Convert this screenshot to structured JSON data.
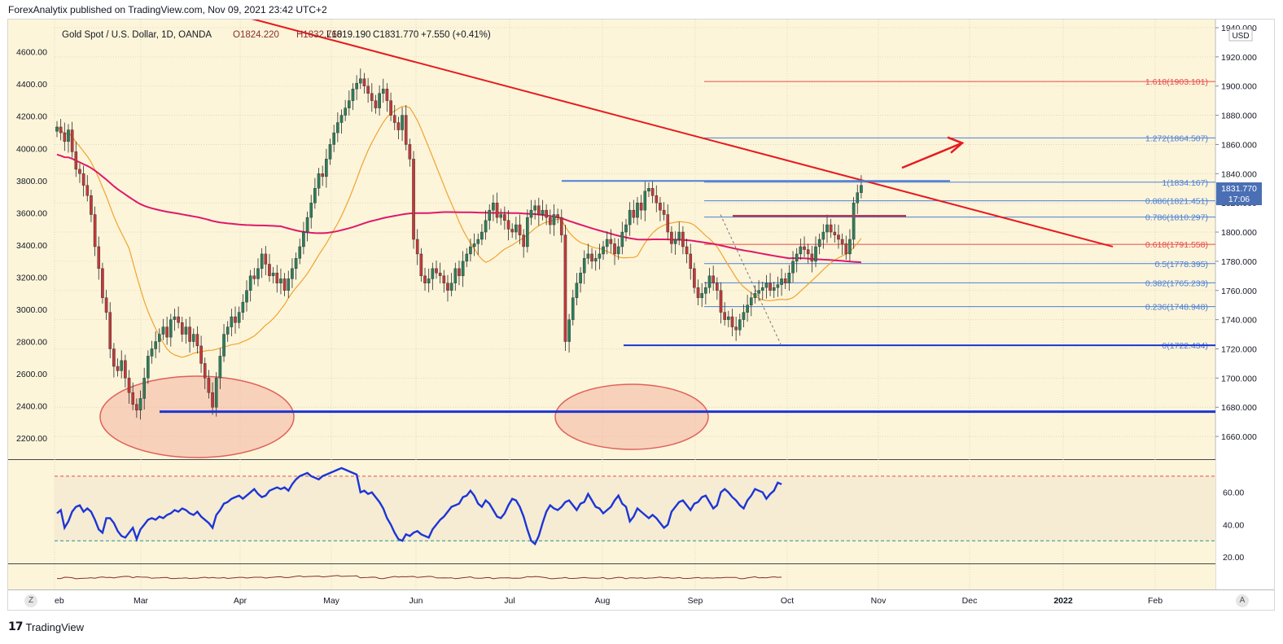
{
  "publisher_line": "ForexAnalytix published on TradingView.com, Nov 09, 2021 23:42 UTC+2",
  "brand": {
    "logo_text": "17",
    "name": "TradingView"
  },
  "zoom_button": "Z",
  "auto_button": "A",
  "currency_badge": "USD",
  "legend": {
    "symbol": "Gold Spot / U.S. Dollar, 1D, OANDA",
    "open": "O1824.220",
    "high": "H1832.760",
    "low": "L1819.190",
    "close": "C1831.770",
    "change": "+7.550 (+0.41%)"
  },
  "last_price": {
    "value": "1831.770",
    "countdown": "17:06"
  },
  "colors": {
    "background": "#fcf5da",
    "rsi_background": "#f5ecd3",
    "trendline": "#e8191f",
    "support_line": "#1d35d6",
    "ma_long": "#e0186b",
    "ma_short": "#f2a32e",
    "rsi_line": "#1d35d6",
    "fib_blue": "#4d7fd6",
    "fib_red": "#e84a4a",
    "candle_up": "#2e7d5b",
    "candle_down": "#c03a3a",
    "ellipse_fill": "#f3b3a0",
    "ellipse_stroke": "#e0605a"
  },
  "chart_data": {
    "type": "candlestick",
    "title": "Gold Spot / U.S. Dollar, 1D, OANDA",
    "right_axis": {
      "label": "USD",
      "ticks": [
        "1940.000",
        "1920.000",
        "1900.000",
        "1880.000",
        "1860.000",
        "1840.000",
        "1820.000",
        "1800.000",
        "1780.000",
        "1760.000",
        "1740.000",
        "1720.000",
        "1700.000",
        "1680.000",
        "1660.000"
      ],
      "range": [
        1650,
        1940
      ]
    },
    "left_axis": {
      "ticks": [
        "4600.00",
        "4400.00",
        "4200.00",
        "4000.00",
        "3800.00",
        "3600.00",
        "3400.00",
        "3200.00",
        "3000.00",
        "2800.00",
        "2600.00",
        "2400.00",
        "2200.00"
      ],
      "range": [
        2120,
        4750
      ]
    },
    "x_axis": {
      "ticks": [
        "eb",
        "Mar",
        "Apr",
        "May",
        "Jun",
        "Jul",
        "Aug",
        "Sep",
        "Oct",
        "Nov",
        "Dec",
        "2022",
        "Feb"
      ]
    },
    "fibonacci": [
      {
        "label": "1.618(1903.101)",
        "level": 1903.101
      },
      {
        "label": "1.272(1864.507)",
        "level": 1864.507
      },
      {
        "label": "1(1834.167)",
        "level": 1834.167
      },
      {
        "label": "0.886(1821.451)",
        "level": 1821.451
      },
      {
        "label": "0.786(1810.297)",
        "level": 1810.297
      },
      {
        "label": "0.618(1791.558)",
        "level": 1791.558
      },
      {
        "label": "0.5(1778.395)",
        "level": 1778.395
      },
      {
        "label": "0.382(1765.233)",
        "level": 1765.233
      },
      {
        "label": "0.236(1748.948)",
        "level": 1748.948
      },
      {
        "label": "0(1722.434)",
        "level": 1722.434
      }
    ],
    "support_levels": [
      1722.4,
      1677
    ],
    "resistance_zone": 1811,
    "trendline": {
      "from": [
        "Jan",
        "1946"
      ],
      "to": [
        "Dec",
        "1790"
      ]
    },
    "close_series": [
      1872,
      1868,
      1862,
      1870,
      1855,
      1843,
      1840,
      1832,
      1825,
      1812,
      1790,
      1775,
      1755,
      1745,
      1720,
      1708,
      1705,
      1712,
      1700,
      1690,
      1682,
      1678,
      1686,
      1700,
      1715,
      1720,
      1725,
      1730,
      1735,
      1728,
      1740,
      1742,
      1738,
      1730,
      1735,
      1725,
      1730,
      1722,
      1710,
      1700,
      1690,
      1680,
      1700,
      1715,
      1730,
      1735,
      1742,
      1738,
      1745,
      1752,
      1760,
      1770,
      1768,
      1775,
      1785,
      1778,
      1770,
      1772,
      1765,
      1768,
      1760,
      1768,
      1775,
      1782,
      1790,
      1800,
      1810,
      1820,
      1830,
      1840,
      1838,
      1850,
      1860,
      1868,
      1875,
      1880,
      1885,
      1890,
      1898,
      1902,
      1905,
      1900,
      1895,
      1890,
      1885,
      1895,
      1898,
      1890,
      1880,
      1875,
      1870,
      1880,
      1860,
      1850,
      1795,
      1785,
      1770,
      1765,
      1768,
      1775,
      1772,
      1770,
      1765,
      1760,
      1765,
      1775,
      1770,
      1780,
      1785,
      1790,
      1792,
      1795,
      1800,
      1808,
      1815,
      1820,
      1810,
      1812,
      1808,
      1802,
      1800,
      1805,
      1798,
      1790,
      1810,
      1815,
      1818,
      1812,
      1815,
      1810,
      1805,
      1812,
      1810,
      1798,
      1725,
      1740,
      1755,
      1765,
      1772,
      1782,
      1785,
      1780,
      1782,
      1785,
      1790,
      1795,
      1792,
      1785,
      1790,
      1800,
      1805,
      1815,
      1810,
      1820,
      1815,
      1828,
      1830,
      1825,
      1820,
      1815,
      1812,
      1800,
      1792,
      1795,
      1800,
      1790,
      1785,
      1775,
      1762,
      1755,
      1758,
      1762,
      1770,
      1765,
      1760,
      1745,
      1740,
      1742,
      1735,
      1733,
      1740,
      1745,
      1750,
      1755,
      1758,
      1760,
      1762,
      1765,
      1760,
      1762,
      1764,
      1768,
      1765,
      1772,
      1780,
      1785,
      1790,
      1788,
      1785,
      1780,
      1790,
      1795,
      1800,
      1805,
      1800,
      1798,
      1795,
      1792,
      1785,
      1795,
      1820,
      1827,
      1832
    ]
  },
  "rsi": {
    "ticks": [
      "60.00",
      "40.00",
      "20.00"
    ],
    "overbought": 70,
    "oversold": 30,
    "values": [
      47,
      49,
      38,
      42,
      48,
      51,
      52,
      48,
      50,
      48,
      43,
      37,
      35,
      44,
      44,
      41,
      36,
      33,
      32,
      35,
      38,
      31,
      37,
      40,
      43,
      44,
      43,
      45,
      44,
      46,
      47,
      49,
      48,
      50,
      49,
      47,
      46,
      48,
      45,
      43,
      41,
      38,
      46,
      49,
      53,
      54,
      56,
      57,
      58,
      56,
      58,
      60,
      62,
      59,
      57,
      58,
      61,
      62,
      63,
      62,
      63,
      61,
      65,
      68,
      70,
      71,
      72,
      70,
      69,
      68,
      70,
      71,
      72,
      73,
      74,
      75,
      74,
      73,
      72,
      71,
      60,
      61,
      59,
      60,
      57,
      54,
      50,
      44,
      40,
      35,
      31,
      30,
      34,
      33,
      35,
      36,
      34,
      33,
      32,
      37,
      40,
      43,
      45,
      48,
      51,
      52,
      53,
      57,
      58,
      61,
      58,
      53,
      51,
      55,
      53,
      49,
      45,
      44,
      47,
      52,
      56,
      55,
      51,
      45,
      37,
      30,
      28,
      33,
      41,
      48,
      52,
      50,
      49,
      51,
      54,
      55,
      52,
      49,
      53,
      54,
      59,
      55,
      51,
      50,
      47,
      49,
      51,
      55,
      58,
      53,
      51,
      42,
      45,
      50,
      48,
      46,
      44,
      46,
      44,
      41,
      38,
      40,
      48,
      51,
      54,
      55,
      52,
      49,
      53,
      54,
      57,
      58,
      54,
      50,
      52,
      60,
      62,
      60,
      57,
      55,
      52,
      50,
      55,
      58,
      62,
      61,
      60,
      56,
      59,
      61,
      66,
      65
    ]
  },
  "annotation_arrow": {
    "from": [
      "Nov",
      "1844"
    ],
    "to": [
      "Dec",
      "1861"
    ]
  }
}
